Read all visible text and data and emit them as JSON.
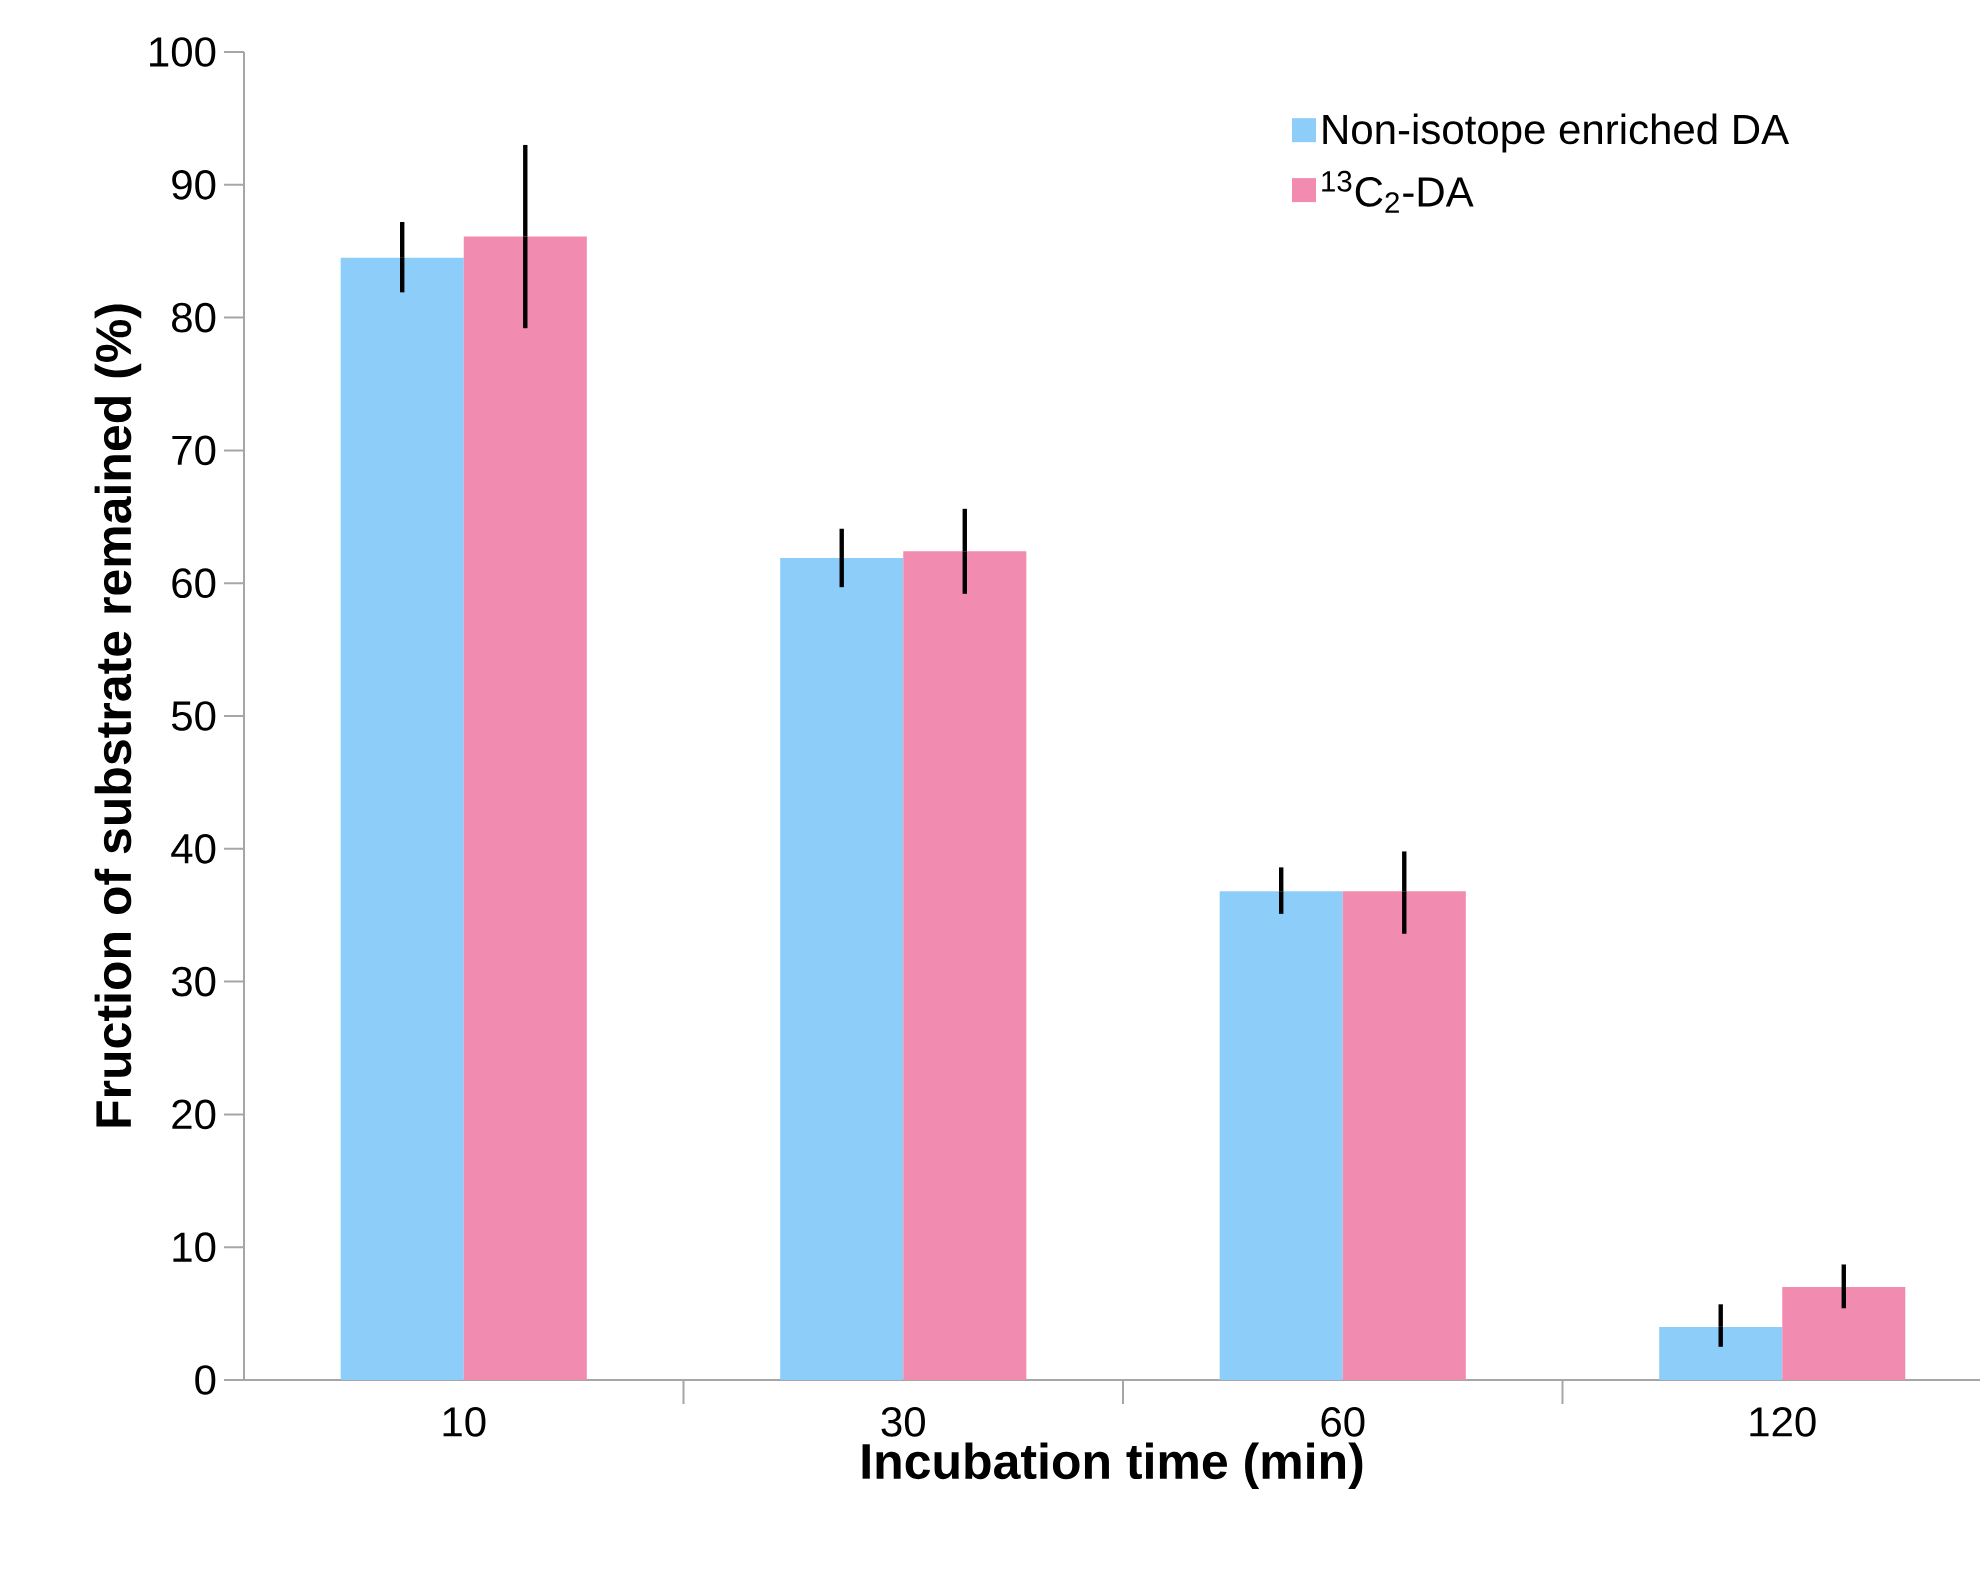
{
  "chart_data": {
    "type": "bar",
    "xlabel": "Incubation time (min)",
    "ylabel": "Fruction of substrate remained (%)",
    "categories": [
      "10",
      "30",
      "60",
      "120"
    ],
    "series": [
      {
        "name": "Non-isotope enriched DA",
        "color": "#8ccdfa",
        "values": [
          84.5,
          61.9,
          36.8,
          4.0
        ],
        "errors": [
          [
            81.9,
            87.2
          ],
          [
            59.7,
            64.1
          ],
          [
            35.1,
            38.6
          ],
          [
            2.5,
            5.7
          ]
        ]
      },
      {
        "name": "$^{13}$C$_{2}$-DA",
        "color": "#f28bb0",
        "values": [
          86.1,
          62.4,
          36.8,
          7.0
        ],
        "errors": [
          [
            79.2,
            93.0
          ],
          [
            59.2,
            65.6
          ],
          [
            33.6,
            39.8
          ],
          [
            5.4,
            8.7
          ]
        ]
      }
    ],
    "ylim": [
      0,
      100
    ],
    "yticks": [
      0,
      10,
      20,
      30,
      40,
      50,
      60,
      70,
      80,
      90,
      100
    ],
    "legend": "top right",
    "grid": false
  }
}
